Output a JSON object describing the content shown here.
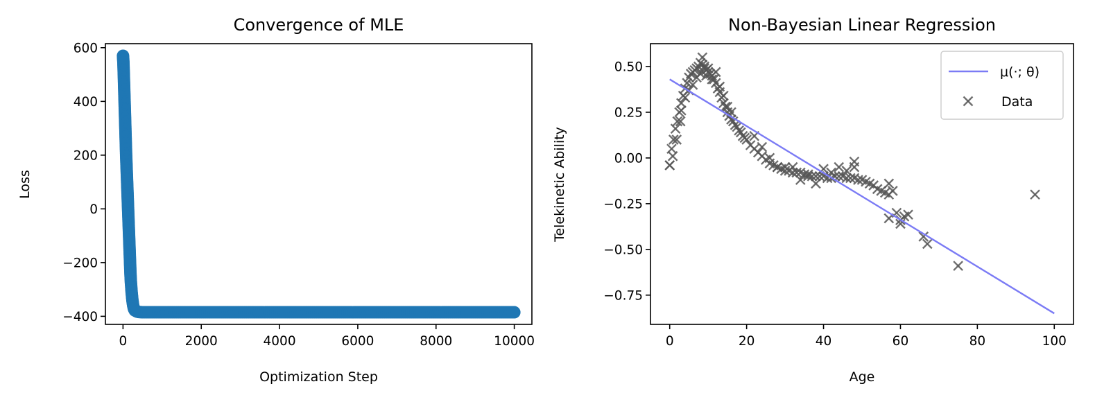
{
  "colors": {
    "loss": "#1f77b4",
    "fit_line": "#7b7bf5",
    "data_marker": "#555555"
  },
  "chart_data": [
    {
      "type": "scatter",
      "title": "Convergence of MLE",
      "xlabel": "Optimization Step",
      "ylabel": "Loss",
      "xlim": [
        -450,
        10450
      ],
      "ylim": [
        -430,
        615
      ],
      "xticks": [
        0,
        2000,
        4000,
        6000,
        8000,
        10000
      ],
      "xtick_labels": [
        "0",
        "2000",
        "4000",
        "6000",
        "8000",
        "10000"
      ],
      "yticks": [
        -400,
        -200,
        0,
        200,
        400,
        600
      ],
      "ytick_labels": [
        "−400",
        "−200",
        "0",
        "200",
        "400",
        "600"
      ],
      "grid": false,
      "legend": false,
      "series": [
        {
          "x": [
            0,
            10,
            20,
            30,
            40,
            50,
            60,
            70,
            80,
            90,
            100,
            110,
            120,
            130,
            140,
            150,
            160,
            170,
            180,
            190,
            200,
            220,
            240,
            260,
            280,
            300,
            350,
            400,
            500,
            1000,
            2000,
            3000,
            4000,
            5000,
            6000,
            7000,
            8000,
            9000,
            10000
          ],
          "y": [
            570,
            545,
            500,
            450,
            400,
            350,
            300,
            250,
            200,
            160,
            120,
            80,
            40,
            0,
            -40,
            -80,
            -120,
            -160,
            -200,
            -240,
            -270,
            -310,
            -340,
            -360,
            -372,
            -378,
            -382,
            -384,
            -385,
            -385,
            -385,
            -385,
            -385,
            -385,
            -385,
            -385,
            -385,
            -385,
            -385
          ]
        }
      ]
    },
    {
      "type": "scatter",
      "title": "Non-Bayesian Linear Regression",
      "xlabel": "Age",
      "ylabel": "Telekinetic Ability",
      "xlim": [
        -5,
        105
      ],
      "ylim": [
        -0.91,
        0.625
      ],
      "xticks": [
        0,
        20,
        40,
        60,
        80,
        100
      ],
      "xtick_labels": [
        "0",
        "20",
        "40",
        "60",
        "80",
        "100"
      ],
      "yticks": [
        -0.75,
        -0.5,
        -0.25,
        0,
        0.25,
        0.5
      ],
      "ytick_labels": [
        "−0.75",
        "−0.50",
        "−0.25",
        "0.00",
        "0.25",
        "0.50"
      ],
      "grid": false,
      "legend": "top-right",
      "series": [
        {
          "name": "μ(·; θ)",
          "kind": "line",
          "x": [
            0,
            100
          ],
          "y": [
            0.43,
            -0.85
          ]
        },
        {
          "name": "Data",
          "kind": "scatter",
          "x": [
            0,
            0.5,
            1,
            1.5,
            2,
            2.5,
            3,
            3.5,
            4,
            4.5,
            5,
            5.5,
            6,
            6.5,
            7,
            7.5,
            8,
            8.5,
            9,
            9.5,
            10,
            10.5,
            11,
            11.5,
            12,
            12.5,
            13,
            13.5,
            14,
            14.5,
            15,
            15.5,
            16,
            16.5,
            17,
            17.5,
            18,
            18.5,
            19,
            19.5,
            20,
            21,
            22,
            23,
            24,
            25,
            26,
            27,
            28,
            29,
            30,
            31,
            32,
            33,
            34,
            35,
            36,
            37,
            38,
            39,
            40,
            41,
            42,
            43,
            44,
            45,
            46,
            47,
            48,
            49,
            50,
            51,
            52,
            53,
            54,
            55,
            56,
            57,
            7,
            8,
            9,
            10,
            11,
            8.5,
            9.5,
            12,
            13,
            14,
            15,
            16,
            6,
            5,
            4,
            3,
            22,
            24,
            26,
            28,
            30,
            32,
            34,
            36,
            38,
            40,
            42,
            44,
            46,
            48,
            0.8,
            1.8,
            2.8,
            0,
            48,
            57,
            57,
            58,
            59,
            60,
            61,
            62,
            60,
            66,
            67,
            75,
            95
          ],
          "y": [
            -0.04,
            0.05,
            0.1,
            0.16,
            0.2,
            0.25,
            0.3,
            0.34,
            0.38,
            0.41,
            0.44,
            0.46,
            0.47,
            0.48,
            0.49,
            0.5,
            0.52,
            0.51,
            0.49,
            0.48,
            0.47,
            0.46,
            0.45,
            0.43,
            0.41,
            0.38,
            0.36,
            0.33,
            0.3,
            0.28,
            0.25,
            0.23,
            0.21,
            0.2,
            0.18,
            0.17,
            0.15,
            0.14,
            0.12,
            0.11,
            0.1,
            0.07,
            0.05,
            0.03,
            0.01,
            -0.01,
            -0.03,
            -0.04,
            -0.05,
            -0.06,
            -0.07,
            -0.07,
            -0.08,
            -0.08,
            -0.08,
            -0.09,
            -0.09,
            -0.1,
            -0.1,
            -0.1,
            -0.1,
            -0.11,
            -0.11,
            -0.1,
            -0.1,
            -0.1,
            -0.11,
            -0.11,
            -0.11,
            -0.12,
            -0.12,
            -0.13,
            -0.14,
            -0.15,
            -0.17,
            -0.18,
            -0.19,
            -0.2,
            0.44,
            0.46,
            0.5,
            0.49,
            0.43,
            0.55,
            0.45,
            0.47,
            0.39,
            0.34,
            0.28,
            0.25,
            0.4,
            0.37,
            0.33,
            0.26,
            0.12,
            0.06,
            0.0,
            -0.05,
            -0.05,
            -0.05,
            -0.12,
            -0.1,
            -0.14,
            -0.06,
            -0.08,
            -0.05,
            -0.07,
            -0.02,
            0.01,
            0.1,
            0.2,
            -0.04,
            -0.05,
            -0.14,
            -0.33,
            -0.18,
            -0.3,
            -0.36,
            -0.32,
            -0.31,
            -0.34,
            -0.43,
            -0.47,
            -0.59,
            -0.2
          ]
        }
      ]
    }
  ]
}
